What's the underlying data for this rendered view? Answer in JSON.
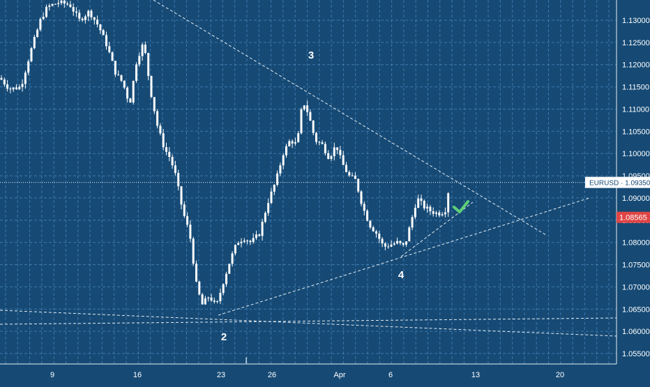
{
  "colors": {
    "background": "#164a75",
    "grid": "#4a86bd",
    "candle": "#ffffff",
    "axis_text": "#ffffff",
    "price_label_bg": "#ffffff",
    "price_label_text": "#164a75",
    "last_price_bg": "#e04545",
    "checkmark": "#5fcf79"
  },
  "symbol_label": "EURUSD",
  "current_price": "1.09350",
  "last_price": "1.08565",
  "wave_labels": [
    "3",
    "2",
    "4"
  ],
  "axis_marker": "I",
  "check_icon": "checkmark-icon",
  "chart_data": {
    "type": "candlestick",
    "grid": true,
    "x_tick_labels": [
      "9",
      "16",
      "23",
      "26",
      "Apr",
      "6",
      "13",
      "20"
    ],
    "y_tick_labels": [
      "1.13000",
      "1.12500",
      "1.12000",
      "1.11500",
      "1.11000",
      "1.10500",
      "1.10000",
      "1.09500",
      "1.09000",
      "1.08500",
      "1.08000",
      "1.07500",
      "1.07000",
      "1.06500",
      "1.06000",
      "1.05500"
    ],
    "ylim": [
      1.053,
      1.1335
    ],
    "series": [
      {
        "x": "Mar 9",
        "values": [
          1.1325,
          1.1135,
          1.1185
        ]
      },
      {
        "x": "Mar 10",
        "values": [
          1.134,
          1.125,
          1.129
        ]
      },
      {
        "x": "Mar 12",
        "values": [
          1.131,
          1.118,
          1.12
        ]
      },
      {
        "x": "Mar 13",
        "values": [
          1.123,
          1.106,
          1.11
        ]
      },
      {
        "x": "Mar 17",
        "values": [
          1.106,
          1.096,
          1.0985
        ]
      },
      {
        "x": "Mar 19",
        "values": [
          1.092,
          1.085,
          1.087
        ]
      },
      {
        "x": "Mar 20",
        "values": [
          1.071,
          1.065,
          1.067
        ]
      },
      {
        "x": "Mar 23",
        "values": [
          1.067,
          1.064,
          1.0655
        ]
      },
      {
        "x": "Mar 25",
        "values": [
          1.08,
          1.073,
          1.078
        ]
      },
      {
        "x": "Mar 26",
        "values": [
          1.09,
          1.083,
          1.087
        ]
      },
      {
        "x": "Mar 27",
        "values": [
          1.104,
          1.095,
          1.1
        ]
      },
      {
        "x": "Mar 30",
        "values": [
          1.1145,
          1.106,
          1.109
        ]
      },
      {
        "x": "Mar 31",
        "values": [
          1.102,
          1.096,
          1.0985
        ]
      },
      {
        "x": "Apr 1",
        "values": [
          1.101,
          1.094,
          1.096
        ]
      },
      {
        "x": "Apr 2",
        "values": [
          1.095,
          1.087,
          1.09
        ]
      },
      {
        "x": "Apr 3",
        "values": [
          1.086,
          1.08,
          1.082
        ]
      },
      {
        "x": "Apr 6",
        "values": [
          1.082,
          1.078,
          1.08
        ]
      },
      {
        "x": "Apr 7",
        "values": [
          1.091,
          1.085,
          1.088
        ]
      },
      {
        "x": "Apr 8",
        "values": [
          1.0895,
          1.085,
          1.087
        ]
      },
      {
        "x": "Apr 9",
        "values": [
          1.094,
          1.086,
          1.0935
        ]
      }
    ]
  }
}
